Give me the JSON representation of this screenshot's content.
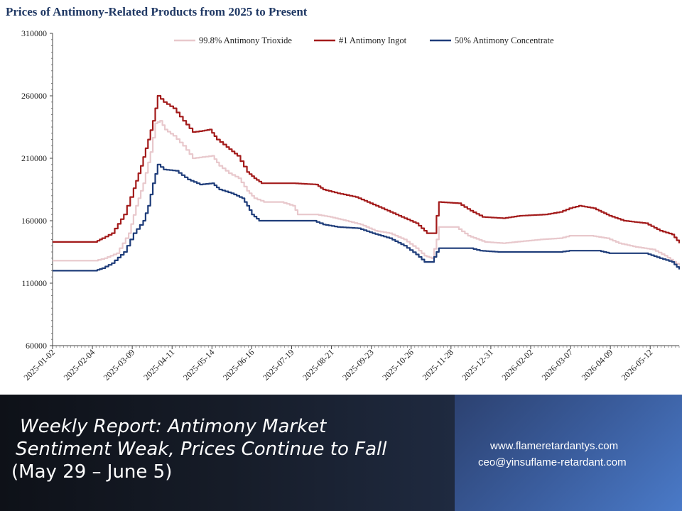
{
  "chart_data": {
    "type": "line",
    "title": "Prices of Antimony-Related Products from 2025 to Present",
    "xlabel": "",
    "ylabel": "",
    "ylim": [
      60000,
      310000
    ],
    "yticks": [
      60000,
      110000,
      160000,
      210000,
      260000,
      310000
    ],
    "xlim": [
      "2025-01-02",
      "2026-06-05"
    ],
    "xticks": [
      "2025-01-02",
      "2025-02-04",
      "2025-03-09",
      "2025-04-11",
      "2025-05-14",
      "2025-06-16",
      "2025-07-19",
      "2025-08-21",
      "2025-09-23",
      "2025-10-26",
      "2025-11-28",
      "2025-12-31",
      "2026-02-02",
      "2026-03-07",
      "2026-04-09",
      "2026-05-12"
    ],
    "grid": false,
    "legend_position": "top",
    "series": [
      {
        "name": "99.8% Antimony Trioxide",
        "color": "#e8c8cc",
        "points": [
          [
            "2025-01-02",
            128000
          ],
          [
            "2025-02-06",
            128000
          ],
          [
            "2025-02-14",
            130000
          ],
          [
            "2025-02-24",
            134000
          ],
          [
            "2025-03-06",
            150000
          ],
          [
            "2025-03-12",
            172000
          ],
          [
            "2025-03-18",
            190000
          ],
          [
            "2025-03-24",
            215000
          ],
          [
            "2025-03-28",
            238000
          ],
          [
            "2025-04-01",
            240000
          ],
          [
            "2025-04-05",
            233000
          ],
          [
            "2025-04-12",
            228000
          ],
          [
            "2025-04-20",
            220000
          ],
          [
            "2025-04-28",
            210000
          ],
          [
            "2025-05-06",
            211000
          ],
          [
            "2025-05-14",
            212000
          ],
          [
            "2025-05-20",
            204000
          ],
          [
            "2025-05-28",
            198000
          ],
          [
            "2025-06-05",
            194000
          ],
          [
            "2025-06-12",
            184000
          ],
          [
            "2025-06-18",
            178000
          ],
          [
            "2025-06-26",
            175000
          ],
          [
            "2025-07-10",
            175000
          ],
          [
            "2025-07-20",
            172000
          ],
          [
            "2025-07-24",
            165000
          ],
          [
            "2025-08-08",
            165000
          ],
          [
            "2025-08-20",
            163000
          ],
          [
            "2025-09-02",
            160000
          ],
          [
            "2025-09-14",
            157000
          ],
          [
            "2025-09-26",
            152000
          ],
          [
            "2025-10-08",
            150000
          ],
          [
            "2025-10-20",
            145000
          ],
          [
            "2025-10-30",
            138000
          ],
          [
            "2025-11-06",
            132000
          ],
          [
            "2025-11-12",
            130000
          ],
          [
            "2025-11-16",
            145000
          ],
          [
            "2025-11-18",
            155000
          ],
          [
            "2025-12-02",
            155000
          ],
          [
            "2025-12-12",
            148000
          ],
          [
            "2025-12-26",
            143000
          ],
          [
            "2026-01-10",
            142000
          ],
          [
            "2026-01-20",
            143000
          ],
          [
            "2026-02-10",
            145000
          ],
          [
            "2026-02-26",
            146000
          ],
          [
            "2026-03-06",
            148000
          ],
          [
            "2026-03-24",
            148000
          ],
          [
            "2026-04-06",
            146000
          ],
          [
            "2026-04-16",
            142000
          ],
          [
            "2026-04-30",
            139000
          ],
          [
            "2026-05-14",
            137000
          ],
          [
            "2026-05-24",
            132000
          ],
          [
            "2026-06-05",
            124000
          ]
        ]
      },
      {
        "name": "#1 Antimony Ingot",
        "color": "#a31b1b",
        "points": [
          [
            "2025-01-02",
            143000
          ],
          [
            "2025-02-06",
            143000
          ],
          [
            "2025-02-12",
            146000
          ],
          [
            "2025-02-20",
            150000
          ],
          [
            "2025-03-02",
            165000
          ],
          [
            "2025-03-10",
            186000
          ],
          [
            "2025-03-16",
            204000
          ],
          [
            "2025-03-22",
            225000
          ],
          [
            "2025-03-26",
            240000
          ],
          [
            "2025-03-30",
            260000
          ],
          [
            "2025-04-04",
            255000
          ],
          [
            "2025-04-12",
            250000
          ],
          [
            "2025-04-20",
            240000
          ],
          [
            "2025-04-28",
            231000
          ],
          [
            "2025-05-06",
            232000
          ],
          [
            "2025-05-12",
            233000
          ],
          [
            "2025-05-18",
            225000
          ],
          [
            "2025-05-26",
            219000
          ],
          [
            "2025-06-04",
            212000
          ],
          [
            "2025-06-12",
            199000
          ],
          [
            "2025-06-18",
            194000
          ],
          [
            "2025-06-24",
            190000
          ],
          [
            "2025-07-20",
            190000
          ],
          [
            "2025-08-08",
            189000
          ],
          [
            "2025-08-14",
            185000
          ],
          [
            "2025-08-26",
            182000
          ],
          [
            "2025-09-10",
            179000
          ],
          [
            "2025-09-22",
            174000
          ],
          [
            "2025-10-04",
            169000
          ],
          [
            "2025-10-18",
            163000
          ],
          [
            "2025-10-30",
            158000
          ],
          [
            "2025-11-08",
            150000
          ],
          [
            "2025-11-14",
            150000
          ],
          [
            "2025-11-16",
            164000
          ],
          [
            "2025-11-18",
            175000
          ],
          [
            "2025-12-04",
            174000
          ],
          [
            "2025-12-14",
            168000
          ],
          [
            "2025-12-24",
            163000
          ],
          [
            "2026-01-10",
            162000
          ],
          [
            "2026-01-24",
            164000
          ],
          [
            "2026-02-14",
            165000
          ],
          [
            "2026-02-26",
            167000
          ],
          [
            "2026-03-06",
            170000
          ],
          [
            "2026-03-14",
            172000
          ],
          [
            "2026-03-26",
            170000
          ],
          [
            "2026-04-08",
            164000
          ],
          [
            "2026-04-20",
            160000
          ],
          [
            "2026-05-08",
            158000
          ],
          [
            "2026-05-20",
            152000
          ],
          [
            "2026-05-30",
            149000
          ],
          [
            "2026-06-05",
            142000
          ]
        ]
      },
      {
        "name": "50% Antimony Concentrate",
        "color": "#1f3d7a",
        "points": [
          [
            "2025-01-02",
            120000
          ],
          [
            "2025-02-06",
            120000
          ],
          [
            "2025-02-12",
            122000
          ],
          [
            "2025-02-20",
            126000
          ],
          [
            "2025-03-02",
            135000
          ],
          [
            "2025-03-10",
            150000
          ],
          [
            "2025-03-18",
            160000
          ],
          [
            "2025-03-22",
            172000
          ],
          [
            "2025-03-26",
            190000
          ],
          [
            "2025-03-30",
            205000
          ],
          [
            "2025-04-04",
            201000
          ],
          [
            "2025-04-14",
            200000
          ],
          [
            "2025-04-24",
            193000
          ],
          [
            "2025-05-04",
            189000
          ],
          [
            "2025-05-14",
            190000
          ],
          [
            "2025-05-20",
            185000
          ],
          [
            "2025-05-30",
            182000
          ],
          [
            "2025-06-08",
            178000
          ],
          [
            "2025-06-12",
            172000
          ],
          [
            "2025-06-16",
            165000
          ],
          [
            "2025-06-22",
            160000
          ],
          [
            "2025-07-20",
            160000
          ],
          [
            "2025-08-06",
            160000
          ],
          [
            "2025-08-14",
            157000
          ],
          [
            "2025-08-26",
            155000
          ],
          [
            "2025-09-12",
            154000
          ],
          [
            "2025-09-24",
            150000
          ],
          [
            "2025-10-08",
            146000
          ],
          [
            "2025-10-20",
            140000
          ],
          [
            "2025-10-30",
            133000
          ],
          [
            "2025-11-06",
            127000
          ],
          [
            "2025-11-12",
            127000
          ],
          [
            "2025-11-16",
            135000
          ],
          [
            "2025-11-18",
            138000
          ],
          [
            "2025-12-14",
            138000
          ],
          [
            "2025-12-22",
            136000
          ],
          [
            "2026-01-06",
            135000
          ],
          [
            "2026-02-26",
            135000
          ],
          [
            "2026-03-06",
            136000
          ],
          [
            "2026-03-30",
            136000
          ],
          [
            "2026-04-08",
            134000
          ],
          [
            "2026-05-08",
            134000
          ],
          [
            "2026-05-20",
            130000
          ],
          [
            "2026-05-30",
            127000
          ],
          [
            "2026-06-05",
            121000
          ]
        ]
      }
    ]
  },
  "banner": {
    "headline_1": "Weekly Report: Antimony Market",
    "headline_2": "Sentiment Weak, Prices Continue to Fall",
    "headline_3": "(May 29 – June 5)",
    "website": "www.flameretardantys.com",
    "email": "ceo@yinsuflame-retardant.com"
  }
}
